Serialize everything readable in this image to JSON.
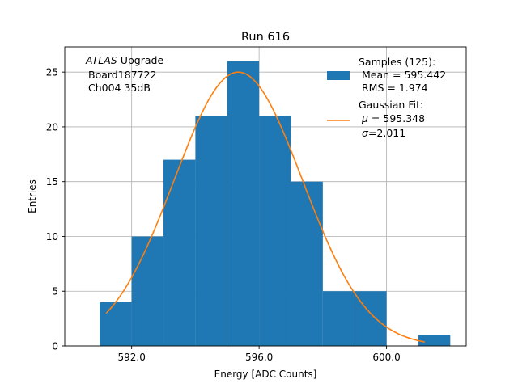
{
  "chart_data": {
    "type": "histogram",
    "title": "Run 616",
    "xlabel": "Energy [ADC Counts]",
    "ylabel": "Entries",
    "xlim": [
      589.9,
      602.5
    ],
    "ylim": [
      0,
      27.3
    ],
    "xticks": [
      592.0,
      596.0,
      600.0
    ],
    "xtick_labels": [
      "592.0",
      "596.0",
      "600.0"
    ],
    "yticks": [
      0,
      5,
      10,
      15,
      20,
      25
    ],
    "ytick_labels": [
      "0",
      "5",
      "10",
      "15",
      "20",
      "25"
    ],
    "grid": true,
    "bin_edges": [
      591,
      592,
      593,
      594,
      595,
      596,
      597,
      598,
      599,
      600,
      601,
      602
    ],
    "counts": [
      4,
      10,
      17,
      21,
      26,
      21,
      15,
      5,
      5,
      0,
      1
    ],
    "fit": {
      "amplitude": 25,
      "mean": 595.348,
      "sigma": 2.011,
      "x_range": [
        591.2,
        601.2
      ]
    },
    "colors": {
      "bars": "#1f77b4",
      "fit": "#ff7f0e",
      "grid": "#b0b0b0"
    },
    "annotation_lines": [
      "Upgrade",
      "Board187722",
      "Ch004 35dB"
    ],
    "annotation_italic": "ATLAS",
    "legend": {
      "placement": "top-right",
      "samples_lines": [
        "Samples (125):",
        "Mean = 595.442",
        "RMS = 1.974"
      ],
      "fit_title": "Gaussian Fit:",
      "fit_mu_symbol": "μ",
      "fit_mu_value": " = 595.348",
      "fit_sigma_symbol": "σ",
      "fit_sigma_value": "=2.011"
    }
  }
}
